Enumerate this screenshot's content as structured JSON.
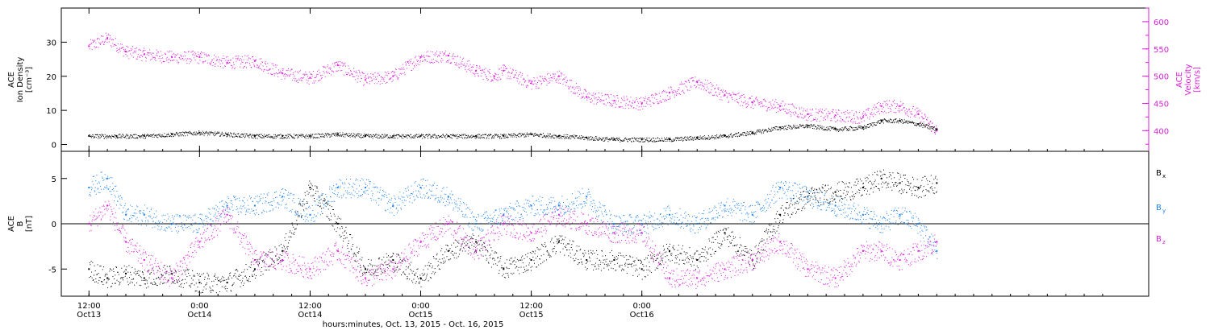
{
  "colors": {
    "magenta": "#d81ed8",
    "blue": "#1e82e6",
    "black": "#000000"
  },
  "chart_data": [
    {
      "type": "scatter",
      "panel": "top",
      "left_axis": {
        "label_lines": [
          "ACE",
          "Ion Density",
          "[cm⁻³]"
        ],
        "ylim": [
          -2,
          40
        ],
        "ticks": [
          0,
          10,
          20,
          30
        ]
      },
      "right_axis": {
        "label_lines": [
          "ACE",
          "Velocity",
          "[km/s]"
        ],
        "ylim": [
          362,
          625
        ],
        "ticks": [
          400,
          450,
          500,
          550,
          600
        ]
      },
      "series": [
        {
          "axis": "right",
          "color": "magenta",
          "x": [
            0,
            2,
            4,
            6,
            9,
            12,
            15,
            18,
            21,
            24,
            27,
            30,
            33,
            36,
            39,
            42,
            44,
            45,
            48,
            51,
            54,
            57,
            60,
            63,
            66,
            69,
            72,
            75,
            78,
            81,
            84,
            86,
            88,
            90,
            92
          ],
          "y": [
            555,
            570,
            545,
            540,
            535,
            535,
            525,
            528,
            505,
            497,
            520,
            493,
            500,
            535,
            538,
            510,
            500,
            510,
            487,
            500,
            462,
            455,
            450,
            470,
            490,
            465,
            452,
            445,
            430,
            428,
            425,
            445,
            445,
            430,
            400
          ]
        },
        {
          "axis": "left",
          "color": "black",
          "x": [
            0,
            3,
            6,
            9,
            12,
            15,
            18,
            21,
            24,
            27,
            30,
            33,
            36,
            39,
            42,
            45,
            48,
            51,
            54,
            57,
            60,
            63,
            66,
            69,
            72,
            75,
            78,
            81,
            84,
            86,
            88,
            90,
            92
          ],
          "y": [
            2.5,
            2.5,
            2.5,
            3,
            3.5,
            3,
            2.5,
            2.5,
            2.5,
            3,
            2.5,
            2.5,
            2.5,
            2.5,
            2.5,
            2.5,
            3,
            2.5,
            2,
            1.5,
            1.5,
            1.5,
            2,
            2.5,
            3.5,
            5,
            5.5,
            4.5,
            5,
            7,
            7,
            6,
            4.5
          ]
        }
      ]
    },
    {
      "type": "scatter",
      "panel": "bottom",
      "left_axis": {
        "label_lines": [
          "ACE",
          "B",
          "[nT]"
        ],
        "ylim": [
          -8,
          8
        ],
        "ticks": [
          -5,
          0,
          5
        ]
      },
      "legend": [
        {
          "text": "B",
          "sub": "x",
          "color": "black"
        },
        {
          "text": "B",
          "sub": "y",
          "color": "blue"
        },
        {
          "text": "B",
          "sub": "z",
          "color": "magenta"
        }
      ],
      "series": [
        {
          "name": "Bx",
          "color": "black",
          "x": [
            0,
            2,
            4,
            6,
            9,
            12,
            15,
            18,
            21,
            24,
            27,
            30,
            33,
            36,
            39,
            42,
            45,
            48,
            51,
            54,
            57,
            60,
            63,
            66,
            69,
            72,
            75,
            78,
            81,
            84,
            86,
            88,
            90,
            92
          ],
          "y": [
            -5,
            -6,
            -5.5,
            -6,
            -5.5,
            -6.5,
            -6.5,
            -5,
            -3,
            4,
            0,
            -5,
            -4,
            -6,
            -3,
            -2,
            -5,
            -4,
            -2,
            -4,
            -4,
            -5,
            -3,
            -4,
            -1,
            -4,
            1,
            3,
            3.5,
            4,
            5,
            4.5,
            4,
            4.5
          ]
        },
        {
          "name": "By",
          "color": "blue",
          "x": [
            0,
            2,
            4,
            6,
            9,
            12,
            15,
            18,
            21,
            24,
            27,
            30,
            33,
            36,
            39,
            42,
            45,
            48,
            51,
            54,
            57,
            60,
            63,
            66,
            69,
            72,
            75,
            78,
            81,
            84,
            86,
            88,
            90,
            92
          ],
          "y": [
            4,
            5,
            1,
            1,
            0,
            0,
            2,
            2,
            3,
            1,
            4,
            4,
            2,
            4,
            3,
            0,
            1,
            2,
            2,
            3,
            0,
            0,
            1,
            0,
            2,
            1,
            4,
            3,
            2,
            1,
            0,
            1,
            0,
            -3
          ]
        },
        {
          "name": "Bz",
          "color": "magenta",
          "x": [
            0,
            2,
            4,
            6,
            9,
            12,
            15,
            18,
            21,
            24,
            27,
            30,
            33,
            36,
            39,
            42,
            45,
            48,
            51,
            54,
            57,
            60,
            63,
            66,
            69,
            72,
            75,
            78,
            81,
            84,
            86,
            88,
            90,
            92
          ],
          "y": [
            0,
            2,
            -2,
            -4,
            -6,
            -2,
            1,
            -4,
            -4,
            -5,
            -3,
            -6,
            -5,
            -2,
            0,
            -3,
            0,
            -1,
            1,
            0,
            -1,
            -1,
            -6,
            -6,
            -5,
            -4,
            -2,
            -5,
            -6,
            -3,
            -3,
            -4,
            -3,
            -2
          ]
        }
      ]
    }
  ],
  "x_axis": {
    "xlim": [
      -3,
      115
    ],
    "major_ticks": [
      {
        "x": 0,
        "time": "12:00",
        "date": "Oct13"
      },
      {
        "x": 12,
        "time": "0:00",
        "date": "Oct14"
      },
      {
        "x": 24,
        "time": "12:00",
        "date": "Oct14"
      },
      {
        "x": 36,
        "time": "0:00",
        "date": "Oct15"
      },
      {
        "x": 48,
        "time": "12:00",
        "date": "Oct15"
      },
      {
        "x": 60,
        "time": "0:00",
        "date": "Oct16"
      }
    ],
    "label": "hours:minutes, Oct. 13, 2015 - Oct. 16, 2015"
  }
}
